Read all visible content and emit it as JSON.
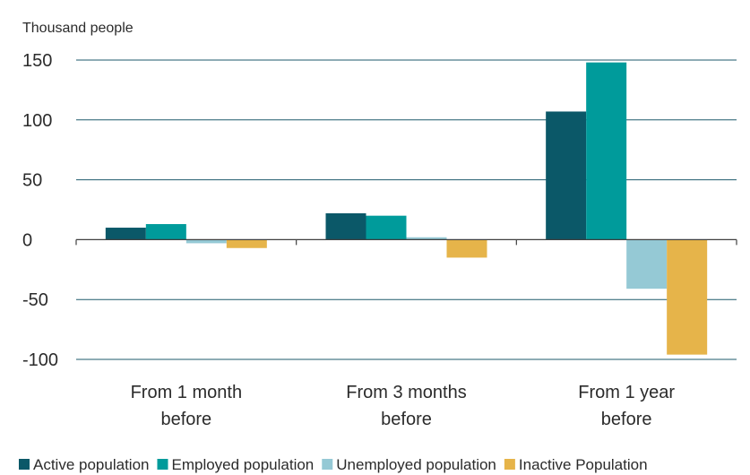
{
  "chart_data": {
    "type": "bar",
    "unit_label": "Thousand people",
    "categories": [
      [
        "From 1 month",
        "before"
      ],
      [
        "From 3 months",
        "before"
      ],
      [
        "From 1 year",
        "before"
      ]
    ],
    "series": [
      {
        "name": "Active population",
        "color": "#0b5868",
        "values": [
          10,
          22,
          107
        ]
      },
      {
        "name": "Employed population",
        "color": "#009b9b",
        "values": [
          13,
          20,
          148
        ]
      },
      {
        "name": "Unemployed population",
        "color": "#95c9d5",
        "values": [
          -3,
          2,
          -41
        ]
      },
      {
        "name": "Inactive Population",
        "color": "#e6b44a",
        "values": [
          -7,
          -15,
          -96
        ]
      }
    ],
    "ylim": [
      -100,
      150
    ],
    "yticks": [
      150,
      100,
      50,
      0,
      -50,
      -100
    ],
    "grid": true,
    "legend_position": "bottom"
  }
}
